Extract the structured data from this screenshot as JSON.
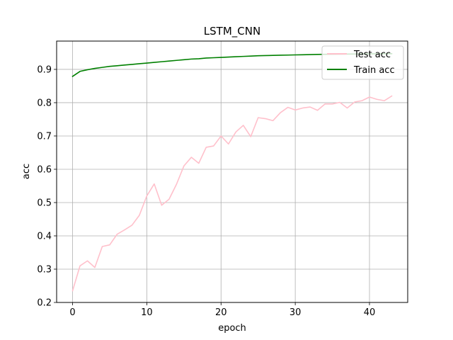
{
  "chart_data": {
    "type": "line",
    "title": "LSTM_CNN",
    "xlabel": "epoch",
    "ylabel": "acc",
    "xlim": [
      -2.15,
      45.15
    ],
    "ylim": [
      0.2,
      0.985
    ],
    "xticks": [
      0,
      10,
      20,
      30,
      40
    ],
    "yticks": [
      0.2,
      0.3,
      0.4,
      0.5,
      0.6,
      0.7,
      0.8,
      0.9
    ],
    "xtick_labels": [
      "0",
      "10",
      "20",
      "30",
      "40"
    ],
    "ytick_labels": [
      "0.2",
      "0.3",
      "0.4",
      "0.5",
      "0.6",
      "0.7",
      "0.8",
      "0.9"
    ],
    "grid": true,
    "legend_position": "top-right",
    "series": [
      {
        "name": "Test acc",
        "color": "#ffc0cb",
        "x": [
          0,
          1,
          2,
          3,
          4,
          5,
          6,
          7,
          8,
          9,
          10,
          11,
          12,
          13,
          14,
          15,
          16,
          17,
          18,
          19,
          20,
          21,
          22,
          23,
          24,
          25,
          26,
          27,
          28,
          29,
          30,
          31,
          32,
          33,
          34,
          35,
          36,
          37,
          38,
          39,
          40,
          41,
          42,
          43
        ],
        "values": [
          0.235,
          0.31,
          0.325,
          0.305,
          0.368,
          0.373,
          0.405,
          0.418,
          0.432,
          0.462,
          0.52,
          0.556,
          0.492,
          0.51,
          0.555,
          0.61,
          0.636,
          0.618,
          0.666,
          0.67,
          0.7,
          0.676,
          0.712,
          0.732,
          0.698,
          0.755,
          0.752,
          0.746,
          0.77,
          0.786,
          0.778,
          0.784,
          0.787,
          0.777,
          0.796,
          0.796,
          0.801,
          0.784,
          0.802,
          0.806,
          0.817,
          0.81,
          0.806,
          0.82
        ]
      },
      {
        "name": "Train acc",
        "color": "#008000",
        "x": [
          0,
          1,
          2,
          3,
          4,
          5,
          6,
          7,
          8,
          9,
          10,
          11,
          12,
          13,
          14,
          15,
          16,
          17,
          18,
          19,
          20,
          21,
          22,
          23,
          24,
          25,
          26,
          27,
          28,
          29,
          30,
          31,
          32,
          33,
          34,
          35,
          36,
          37,
          38,
          39,
          40,
          41,
          42,
          43
        ],
        "values": [
          0.879,
          0.894,
          0.899,
          0.903,
          0.906,
          0.909,
          0.911,
          0.913,
          0.915,
          0.917,
          0.919,
          0.921,
          0.923,
          0.925,
          0.927,
          0.929,
          0.931,
          0.932,
          0.934,
          0.935,
          0.936,
          0.937,
          0.938,
          0.939,
          0.94,
          0.941,
          0.9415,
          0.942,
          0.9425,
          0.943,
          0.9435,
          0.944,
          0.9445,
          0.945,
          0.9452,
          0.9455,
          0.9458,
          0.946,
          0.9462,
          0.9465,
          0.9467,
          0.9468,
          0.947,
          0.9472
        ]
      }
    ]
  }
}
